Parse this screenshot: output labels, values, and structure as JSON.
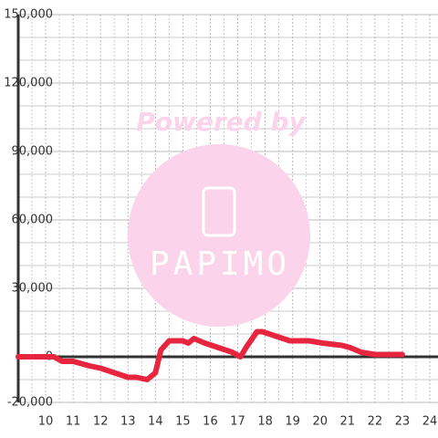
{
  "chart_data": {
    "type": "line",
    "x": [
      9,
      10.3,
      10.6,
      11,
      11.6,
      12,
      12.5,
      13,
      13.3,
      13.7,
      14,
      14.2,
      14.5,
      15,
      15.2,
      15.4,
      15.8,
      16.3,
      16.8,
      17.1,
      17.3,
      17.7,
      17.9,
      18.4,
      18.9,
      19.6,
      20.1,
      20.8,
      21.1,
      21.5,
      22,
      23
    ],
    "series": [
      {
        "color": "#e8253f",
        "values": [
          0,
          0,
          -2000,
          -2000,
          -4000,
          -5000,
          -7000,
          -9000,
          -9000,
          -10000,
          -7000,
          3000,
          7000,
          7000,
          6000,
          8000,
          6000,
          4000,
          2000,
          0,
          4000,
          11000,
          11000,
          9000,
          7000,
          7000,
          6000,
          5000,
          4000,
          2000,
          1000,
          1000
        ]
      }
    ],
    "xlim": [
      9,
      24.3
    ],
    "xticks": [
      10,
      11,
      12,
      13,
      14,
      15,
      16,
      17,
      18,
      19,
      20,
      21,
      22,
      23,
      24
    ],
    "x_minor_ticks": [
      9.5,
      10.5,
      11.5,
      12.5,
      13.5,
      14.5,
      15.5,
      16.5,
      17.5,
      18.5,
      19.5,
      20.5,
      21.5,
      22.5,
      23.5
    ],
    "ylim": [
      -20000,
      150000
    ],
    "yticks": [
      {
        "value": -20000,
        "label": "-20,000"
      },
      0,
      {
        "value": 30000,
        "label": "30,000"
      },
      {
        "value": 60000,
        "label": "60,000"
      },
      {
        "value": 90000,
        "label": "90,000"
      },
      {
        "value": 120000,
        "label": "120,000"
      },
      {
        "value": 150000,
        "label": "150,000"
      }
    ],
    "y_minor_ticks": [
      -10000,
      10000,
      20000,
      40000,
      50000,
      70000,
      80000,
      100000,
      110000,
      130000,
      140000
    ],
    "grid": true,
    "watermark": {
      "top": "Powered by",
      "logo": "PAPIMO"
    }
  }
}
